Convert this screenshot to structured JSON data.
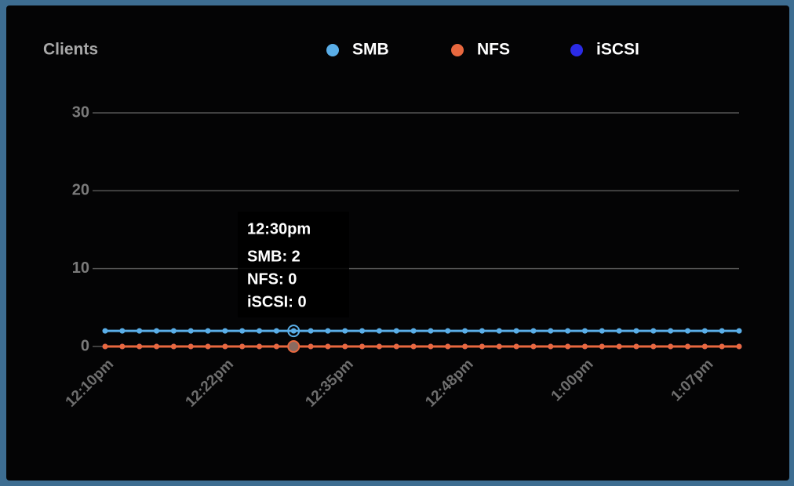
{
  "chart_data": {
    "type": "line",
    "title": "Clients",
    "categories": [
      "12:10pm",
      null,
      null,
      null,
      null,
      null,
      null,
      "12:22pm",
      null,
      null,
      null,
      null,
      null,
      null,
      "12:35pm",
      null,
      null,
      null,
      null,
      null,
      null,
      "12:48pm",
      null,
      null,
      null,
      null,
      null,
      null,
      "1:00pm",
      null,
      null,
      null,
      null,
      null,
      null,
      "1:07pm",
      null,
      null
    ],
    "series": [
      {
        "name": "SMB",
        "color": "#5aaee8",
        "values": [
          2,
          2,
          2,
          2,
          2,
          2,
          2,
          2,
          2,
          2,
          2,
          2,
          2,
          2,
          2,
          2,
          2,
          2,
          2,
          2,
          2,
          2,
          2,
          2,
          2,
          2,
          2,
          2,
          2,
          2,
          2,
          2,
          2,
          2,
          2,
          2,
          2,
          2
        ]
      },
      {
        "name": "NFS",
        "color": "#e8683f",
        "values": [
          0,
          0,
          0,
          0,
          0,
          0,
          0,
          0,
          0,
          0,
          0,
          0,
          0,
          0,
          0,
          0,
          0,
          0,
          0,
          0,
          0,
          0,
          0,
          0,
          0,
          0,
          0,
          0,
          0,
          0,
          0,
          0,
          0,
          0,
          0,
          0,
          0,
          0
        ]
      },
      {
        "name": "iSCSI",
        "color": "#2b2be6",
        "values": [
          0,
          0,
          0,
          0,
          0,
          0,
          0,
          0,
          0,
          0,
          0,
          0,
          0,
          0,
          0,
          0,
          0,
          0,
          0,
          0,
          0,
          0,
          0,
          0,
          0,
          0,
          0,
          0,
          0,
          0,
          0,
          0,
          0,
          0,
          0,
          0,
          0,
          0
        ]
      }
    ],
    "ylim": [
      0,
      30
    ],
    "yticks": [
      0,
      10,
      20,
      30
    ],
    "grid": true,
    "tooltip": {
      "index": 11,
      "title": "12:30pm",
      "lines": [
        "SMB: 2",
        "NFS: 0",
        "iSCSI: 0"
      ]
    }
  }
}
